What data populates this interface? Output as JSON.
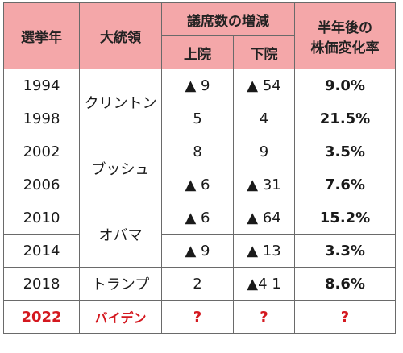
{
  "headers": {
    "year": "選挙年",
    "president": "大統領",
    "seats": "議席数の増減",
    "upper": "上院",
    "lower": "下院",
    "rate_line1": "半年後の",
    "rate_line2": "株価変化率"
  },
  "rows": [
    {
      "year": "1994",
      "upper": "▲ 9",
      "lower": "▲ 54",
      "rate": "9.0%"
    },
    {
      "year": "1998",
      "upper": "5",
      "lower": "4",
      "rate": "21.5%"
    },
    {
      "year": "2002",
      "upper": "8",
      "lower": "9",
      "rate": "3.5%"
    },
    {
      "year": "2006",
      "upper": "▲ 6",
      "lower": "▲ 31",
      "rate": "7.6%"
    },
    {
      "year": "2010",
      "upper": "▲ 6",
      "lower": "▲ 64",
      "rate": "15.2%"
    },
    {
      "year": "2014",
      "upper": "▲ 9",
      "lower": "▲ 13",
      "rate": "3.3%"
    },
    {
      "year": "2018",
      "upper": "2",
      "lower": "▲4 1",
      "rate": "8.6%"
    },
    {
      "year": "2022",
      "upper": "?",
      "lower": "?",
      "rate": "?"
    }
  ],
  "presidents": {
    "clinton": "クリントン",
    "bush": "ブッシュ",
    "obama": "オバマ",
    "trump": "トランプ",
    "biden": "バイデン"
  },
  "colors": {
    "header_bg": "#f4a7a9",
    "highlight_red": "#d4181f"
  }
}
